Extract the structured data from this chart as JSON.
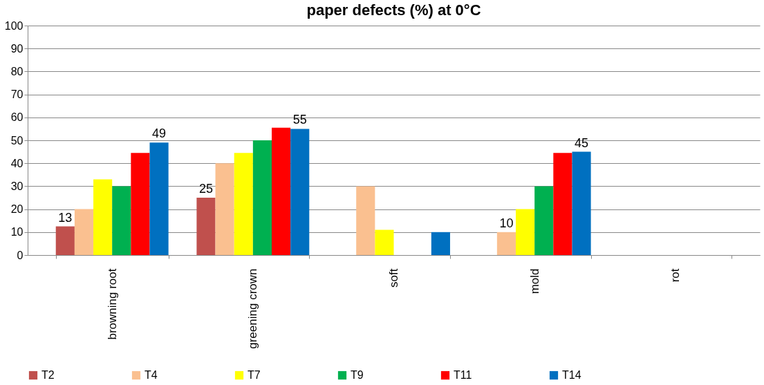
{
  "chart_data": {
    "type": "bar",
    "title": "paper defects (%) at 0°C",
    "categories": [
      "browning root",
      "greening crown",
      "soft",
      "mold",
      "rot"
    ],
    "series": [
      {
        "name": "T2",
        "color": "#c0504d",
        "values": [
          12.5,
          25,
          null,
          null,
          null
        ],
        "value_labels": [
          "13",
          "25",
          null,
          null,
          null
        ]
      },
      {
        "name": "T4",
        "color": "#fac090",
        "values": [
          20,
          40,
          30,
          10,
          null
        ],
        "value_labels": [
          null,
          null,
          null,
          "10",
          null
        ]
      },
      {
        "name": "T7",
        "color": "#ffff00",
        "values": [
          33,
          44.5,
          11,
          20,
          null
        ]
      },
      {
        "name": "T9",
        "color": "#00b050",
        "values": [
          30,
          50,
          null,
          30,
          null
        ]
      },
      {
        "name": "T11",
        "color": "#ff0000",
        "values": [
          44.5,
          55.5,
          null,
          44.5,
          null
        ]
      },
      {
        "name": "T14",
        "color": "#0070c0",
        "values": [
          49,
          55,
          10,
          45,
          null
        ],
        "value_labels": [
          "49",
          "55",
          null,
          "45",
          null
        ]
      }
    ],
    "ylim": [
      0,
      100
    ],
    "yticks": [
      0,
      10,
      20,
      30,
      40,
      50,
      60,
      70,
      80,
      90,
      100
    ],
    "grid": "y",
    "legend": "bottom"
  }
}
